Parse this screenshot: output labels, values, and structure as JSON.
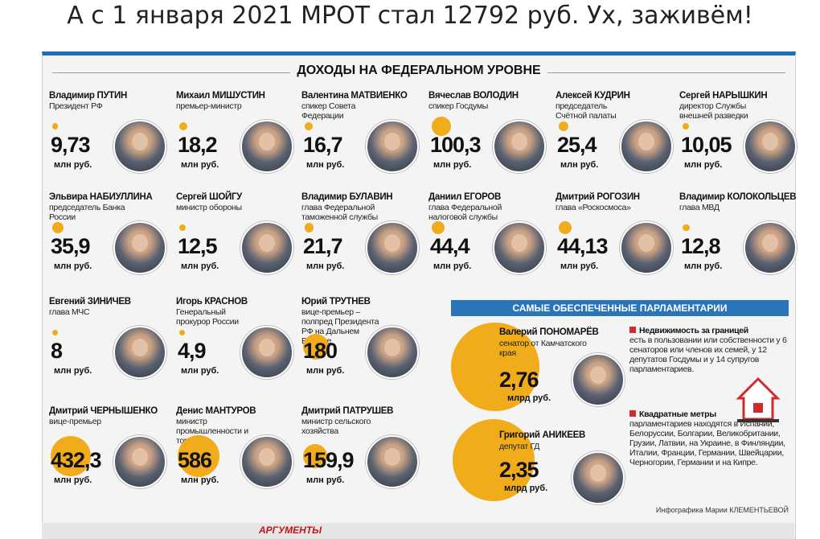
{
  "headline": "А с 1 января 2021 МРОТ стал 12792 руб. Ух, заживём!",
  "card_title": "ДОХОДЫ НА ФЕДЕРАЛЬНОМ УРОВНЕ",
  "unit_mln": "млн руб.",
  "unit_mlrd": "млрд руб.",
  "accent_color": "#f0ac1a",
  "bar_color": "#2a74b8",
  "people": [
    {
      "first": "Владимир",
      "last": "ПУТИН",
      "role": "Президент РФ",
      "value": "9,73",
      "amount": 9.73
    },
    {
      "first": "Михаил",
      "last": "МИШУСТИН",
      "role": "премьер-министр",
      "value": "18,2",
      "amount": 18.2
    },
    {
      "first": "Валентина",
      "last": "МАТВИЕНКО",
      "role": "спикер Совета Федерации",
      "value": "16,7",
      "amount": 16.7
    },
    {
      "first": "Вячеслав",
      "last": "ВОЛОДИН",
      "role": "спикер Госдумы",
      "value": "100,3",
      "amount": 100.3
    },
    {
      "first": "Алексей",
      "last": "КУДРИН",
      "role": "председатель Счётной палаты",
      "value": "25,4",
      "amount": 25.4
    },
    {
      "first": "Сергей",
      "last": "НАРЫШКИН",
      "role": "директор Службы внешней разведки",
      "value": "10,05",
      "amount": 10.05
    },
    {
      "first": "Эльвира",
      "last": "НАБИУЛЛИНА",
      "role": "председатель Банка России",
      "value": "35,9",
      "amount": 35.9
    },
    {
      "first": "Сергей",
      "last": "ШОЙГУ",
      "role": "министр обороны",
      "value": "12,5",
      "amount": 12.5
    },
    {
      "first": "Владимир",
      "last": "БУЛАВИН",
      "role": "глава Федеральной таможенной службы",
      "value": "21,7",
      "amount": 21.7
    },
    {
      "first": "Даниил",
      "last": "ЕГОРОВ",
      "role": "глава Федеральной налоговой службы",
      "value": "44,4",
      "amount": 44.4
    },
    {
      "first": "Дмитрий",
      "last": "РОГОЗИН",
      "role": "глава «Роскосмоса»",
      "value": "44,13",
      "amount": 44.13
    },
    {
      "first": "Владимир",
      "last": "КОЛОКОЛЬЦЕВ",
      "role": "глава МВД",
      "value": "12,8",
      "amount": 12.8
    },
    {
      "first": "Евгений",
      "last": "ЗИНИЧЕВ",
      "role": "глава МЧС",
      "value": "8",
      "amount": 8
    },
    {
      "first": "Игорь",
      "last": "КРАСНОВ",
      "role": "Генеральный прокурор России",
      "value": "4,9",
      "amount": 4.9
    },
    {
      "first": "Юрий",
      "last": "ТРУТНЕВ",
      "role": "вице-премьер – полпред Президента РФ на Дальнем Востоке",
      "value": "180",
      "amount": 180
    },
    {
      "first": "Дмитрий",
      "last": "ЧЕРНЫШЕНКО",
      "role": "вице-премьер",
      "value": "432,3",
      "amount": 432.3
    },
    {
      "first": "Денис",
      "last": "МАНТУРОВ",
      "role": "министр промышленности и торговли",
      "value": "586",
      "amount": 586
    },
    {
      "first": "Дмитрий",
      "last": "ПАТРУШЕВ",
      "role": "министр сельского хозяйства",
      "value": "159,9",
      "amount": 159.9
    }
  ],
  "parliament": {
    "title": "САМЫЕ ОБЕСПЕЧЕННЫЕ ПАРЛАМЕНТАРИИ",
    "members": [
      {
        "first": "Валерий",
        "last": "ПОНОМАРЁВ",
        "role": "сенатор от Камчатского края",
        "value": "2,76",
        "amount": 2760
      },
      {
        "first": "Григорий",
        "last": "АНИКЕЕВ",
        "role": "депутат ГД",
        "value": "2,35",
        "amount": 2350
      }
    ],
    "note1_head": "Недвижимость за границей",
    "note1_body": "есть в пользовании или собственности у 6 сенаторов или членов их семей, у 12 депутатов Госдумы и у 14 супругов парламентариев.",
    "note2_head": "Квадратные метры",
    "note2_body": "парламентариев находятся в Испании, Белоруссии, Болгарии, Великобритании, Грузии, Латвии, на Украине, в Финляндии, Италии, Франции, Германии, Швейцарии, Черногории, Германии и на Кипре."
  },
  "credit": "Инфографика Марии КЛЕМЕНТЬЕВОЙ",
  "footer_logo": "АРГУМЕНТЫ"
}
